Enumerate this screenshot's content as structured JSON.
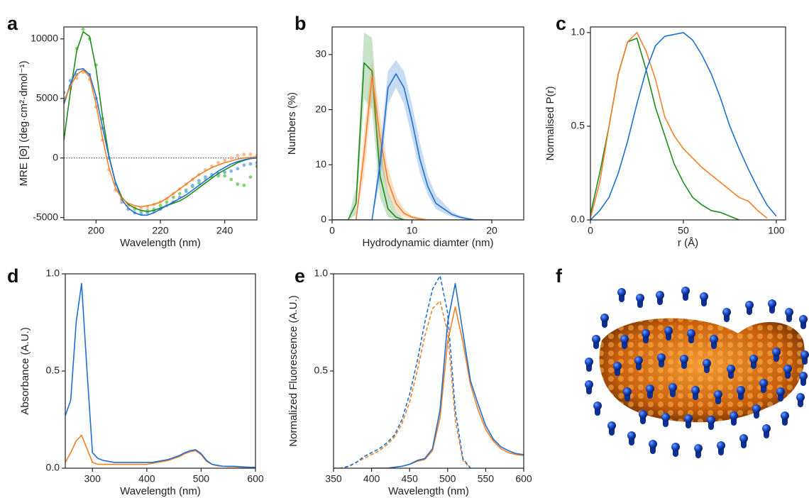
{
  "chart_data": [
    {
      "type": "line",
      "panel": "a",
      "xlabel": "Wavelength (nm)",
      "ylabel": "MRE [Θ] (deg·cm²·dmol⁻¹)",
      "xlim": [
        190,
        250
      ],
      "xticks": [
        200,
        220,
        240
      ],
      "ylim": [
        -5200,
        11000
      ],
      "yticks": [
        -5000,
        0,
        5000,
        10000
      ],
      "hline": 0,
      "x": [
        190,
        192,
        194,
        196,
        198,
        200,
        202,
        204,
        206,
        208,
        210,
        212,
        214,
        216,
        218,
        220,
        222,
        224,
        226,
        228,
        230,
        232,
        234,
        236,
        238,
        240,
        242,
        244,
        246,
        248,
        250
      ],
      "series": [
        {
          "color": "#83d36f",
          "style": "dots",
          "values": [
            2000,
            6000,
            9200,
            10800,
            10000,
            7800,
            3300,
            0,
            -2200,
            -3500,
            -4000,
            -4300,
            -4500,
            -4400,
            -4300,
            -4000,
            -3700,
            -3300,
            -3000,
            -2700,
            -2400,
            -2100,
            -1800,
            -1600,
            -1500,
            -1500,
            -1800,
            -2200,
            -2300,
            -1600,
            -700
          ]
        },
        {
          "color": "#7fb2ee",
          "style": "dots",
          "values": [
            5500,
            6500,
            7000,
            7300,
            7000,
            5000,
            2500,
            0,
            -2200,
            -3700,
            -4300,
            -4600,
            -4700,
            -4600,
            -4500,
            -4300,
            -4000,
            -3700,
            -3300,
            -2800,
            -2300,
            -1900,
            -1600,
            -1400,
            -1300,
            -1200,
            -1100,
            -900,
            -600,
            -500,
            -400
          ]
        },
        {
          "color": "#f7b98f",
          "style": "dots",
          "values": [
            5000,
            5800,
            6700,
            7200,
            6600,
            4300,
            1500,
            -1000,
            -2700,
            -3600,
            -4000,
            -4200,
            -4200,
            -4100,
            -3900,
            -3700,
            -3400,
            -3000,
            -2600,
            -2200,
            -1800,
            -1400,
            -1000,
            -700,
            -400,
            -200,
            0,
            200,
            300,
            300,
            200
          ]
        },
        {
          "color": "#1f8a1f",
          "style": "line",
          "values": [
            1500,
            5500,
            9000,
            10600,
            10200,
            7500,
            3500,
            200,
            -2000,
            -3300,
            -3900,
            -4200,
            -4400,
            -4500,
            -4400,
            -4200,
            -4000,
            -3800,
            -3600,
            -3300,
            -2900,
            -2500,
            -2100,
            -1700,
            -1300,
            -1000,
            -700,
            -400,
            -200,
            -50,
            0
          ]
        },
        {
          "color": "#1f6fd0",
          "style": "line",
          "values": [
            4500,
            6200,
            7400,
            7500,
            7000,
            5200,
            2600,
            100,
            -2000,
            -3500,
            -4200,
            -4600,
            -4800,
            -4800,
            -4600,
            -4300,
            -4000,
            -3700,
            -3400,
            -3100,
            -2700,
            -2300,
            -1900,
            -1500,
            -1100,
            -800,
            -500,
            -300,
            -150,
            -50,
            0
          ]
        },
        {
          "color": "#f47f24",
          "style": "line",
          "values": [
            4800,
            6000,
            7000,
            7400,
            6800,
            4500,
            1700,
            -800,
            -2500,
            -3400,
            -3800,
            -4000,
            -4100,
            -4000,
            -3900,
            -3700,
            -3400,
            -3000,
            -2600,
            -2200,
            -1800,
            -1400,
            -1100,
            -800,
            -600,
            -400,
            -250,
            -100,
            0,
            50,
            100
          ]
        }
      ]
    },
    {
      "type": "line",
      "panel": "b",
      "xlabel": "Hydrodynamic diamter (nm)",
      "ylabel": "Numbers (%)",
      "xlim": [
        0,
        24
      ],
      "xticks": [
        0,
        10,
        20
      ],
      "ylim": [
        0,
        35
      ],
      "yticks": [
        0,
        10,
        20,
        30
      ],
      "x": [
        0,
        1,
        2,
        3,
        4,
        5,
        6,
        7,
        8,
        9,
        10,
        11,
        12,
        13,
        14,
        15,
        16,
        17,
        18,
        19,
        20
      ],
      "series": [
        {
          "color": "#1f8a1f",
          "style": "line",
          "values": [
            0,
            0,
            0,
            3,
            28.5,
            27,
            8,
            2,
            0.5,
            0,
            0,
            0,
            0,
            0,
            0,
            0,
            0,
            0,
            0,
            0,
            0
          ],
          "low": [
            0,
            0,
            0,
            1,
            22,
            20,
            4,
            0.5,
            0,
            0,
            0,
            0,
            0,
            0,
            0,
            0,
            0,
            0,
            0,
            0,
            0
          ],
          "high": [
            0,
            0,
            0,
            6,
            34,
            33,
            14,
            5,
            1.5,
            0.3,
            0,
            0,
            0,
            0,
            0,
            0,
            0,
            0,
            0,
            0,
            0
          ]
        },
        {
          "color": "#f47f24",
          "style": "line",
          "values": [
            0,
            0,
            0,
            0,
            12,
            26,
            15,
            7,
            3,
            1.2,
            0.5,
            0.2,
            0,
            0,
            0,
            0,
            0,
            0,
            0,
            0,
            0
          ],
          "low": [
            0,
            0,
            0,
            0,
            8,
            22,
            11,
            4.5,
            1.5,
            0.5,
            0.2,
            0,
            0,
            0,
            0,
            0,
            0,
            0,
            0,
            0,
            0
          ],
          "high": [
            0,
            0,
            0,
            0,
            16,
            29,
            19,
            9.5,
            4.5,
            2,
            0.8,
            0.4,
            0,
            0,
            0,
            0,
            0,
            0,
            0,
            0,
            0
          ]
        },
        {
          "color": "#1f6fd0",
          "style": "line",
          "values": [
            0,
            0,
            0,
            0,
            0,
            0,
            10,
            24,
            26.5,
            24,
            18,
            11,
            6,
            3,
            2,
            1,
            0.5,
            0.2,
            0,
            0,
            0
          ],
          "low": [
            0,
            0,
            0,
            0,
            0,
            0,
            7,
            21,
            24,
            21,
            15,
            8.5,
            4.5,
            2,
            1.2,
            0.6,
            0.2,
            0,
            0,
            0,
            0
          ],
          "high": [
            0,
            0,
            0,
            0,
            0,
            0,
            13,
            27,
            29,
            27,
            21,
            14,
            8,
            4.5,
            3,
            1.5,
            0.8,
            0.4,
            0,
            0,
            0
          ]
        }
      ]
    },
    {
      "type": "line",
      "panel": "c",
      "xlabel": "r (Å)",
      "ylabel": "Normalised P(r)",
      "xlim": [
        0,
        105
      ],
      "xticks": [
        0,
        50,
        100
      ],
      "ylim": [
        0,
        1.03
      ],
      "yticks": [
        {
          "value": 0,
          "label": "0.0"
        },
        0.5,
        {
          "value": 1,
          "label": "1.0"
        }
      ],
      "x": [
        0,
        5,
        10,
        15,
        20,
        25,
        30,
        35,
        40,
        45,
        50,
        55,
        60,
        65,
        70,
        75,
        80,
        85,
        90,
        95,
        100,
        105
      ],
      "series": [
        {
          "color": "#1f8a1f",
          "style": "line",
          "values": [
            0.03,
            0.25,
            0.5,
            0.78,
            0.95,
            0.97,
            0.8,
            0.6,
            0.45,
            0.3,
            0.2,
            0.12,
            0.08,
            0.05,
            0.04,
            0.02,
            0,
            null,
            null,
            null,
            null,
            null
          ]
        },
        {
          "color": "#f47f24",
          "style": "line",
          "values": [
            0.01,
            0.2,
            0.5,
            0.78,
            0.95,
            1.0,
            0.9,
            0.75,
            0.55,
            0.45,
            0.38,
            0.33,
            0.28,
            0.24,
            0.2,
            0.16,
            0.12,
            0.1,
            0.05,
            0.01,
            null,
            null
          ]
        },
        {
          "color": "#1f6fd0",
          "style": "line",
          "values": [
            0,
            0.05,
            0.12,
            0.25,
            0.42,
            0.62,
            0.8,
            0.93,
            0.98,
            0.99,
            1.0,
            0.96,
            0.88,
            0.78,
            0.65,
            0.5,
            0.38,
            0.27,
            0.17,
            0.08,
            0.02,
            null
          ]
        }
      ]
    },
    {
      "type": "line",
      "panel": "d",
      "xlabel": "Wavelength (nm)",
      "ylabel": "Absorbance (A.U.)",
      "xlim": [
        250,
        600
      ],
      "xticks": [
        300,
        400,
        500,
        600
      ],
      "ylim": [
        0,
        1.0
      ],
      "yticks": [
        {
          "value": 0,
          "label": "0.0"
        },
        0.5,
        {
          "value": 1,
          "label": "1.0"
        }
      ],
      "x": [
        250,
        260,
        270,
        280,
        290,
        300,
        310,
        320,
        330,
        340,
        350,
        360,
        370,
        380,
        390,
        400,
        410,
        420,
        430,
        440,
        450,
        460,
        470,
        480,
        490,
        500,
        510,
        520,
        530,
        540,
        550,
        560,
        570,
        580,
        590,
        600
      ],
      "series": [
        {
          "color": "#f47f24",
          "style": "line",
          "values": [
            0.03,
            0.08,
            0.14,
            0.17,
            0.1,
            0.03,
            0.02,
            0.02,
            0.02,
            0.02,
            0.02,
            0.02,
            0.02,
            0.02,
            0.02,
            0.02,
            0.025,
            0.03,
            0.035,
            0.04,
            0.05,
            0.06,
            0.075,
            0.085,
            0.09,
            0.07,
            0.035,
            0.02,
            0.012,
            0.01,
            0.008,
            0.008,
            0.006,
            0.005,
            0.004,
            0.004
          ]
        },
        {
          "color": "#1f6fd0",
          "style": "line",
          "values": [
            0.27,
            0.35,
            0.75,
            0.95,
            0.5,
            0.08,
            0.05,
            0.04,
            0.035,
            0.03,
            0.03,
            0.03,
            0.03,
            0.03,
            0.03,
            0.03,
            0.03,
            0.035,
            0.04,
            0.045,
            0.055,
            0.065,
            0.08,
            0.09,
            0.095,
            0.075,
            0.04,
            0.02,
            0.015,
            0.01,
            0.01,
            0.01,
            0.008,
            0.006,
            0.005,
            0.005
          ]
        }
      ]
    },
    {
      "type": "line",
      "panel": "e",
      "xlabel": "Wavelength (nm)",
      "ylabel": "Normalized Fluorescence (A.U.)",
      "xlim": [
        350,
        600
      ],
      "xticks": [
        350,
        400,
        450,
        500,
        550,
        600
      ],
      "ylim": [
        0,
        1.0
      ],
      "yticks": [
        0.5,
        {
          "value": 1,
          "label": "1.0"
        }
      ],
      "x": [
        350,
        360,
        370,
        380,
        390,
        400,
        410,
        420,
        430,
        440,
        450,
        460,
        470,
        480,
        490,
        500,
        510,
        520,
        530,
        540,
        550,
        560,
        570,
        580,
        590,
        600
      ],
      "series": [
        {
          "color": "#f47f24",
          "style": "dashed",
          "values": [
            0,
            0,
            0.01,
            0.03,
            0.05,
            0.07,
            0.09,
            0.12,
            0.16,
            0.23,
            0.34,
            0.5,
            0.68,
            0.82,
            0.86,
            0.7,
            0.25,
            0.04,
            0,
            null,
            null,
            null,
            null,
            null,
            null,
            null
          ]
        },
        {
          "color": "#1f6fd0",
          "style": "dashed",
          "values": [
            0,
            0,
            0.01,
            0.03,
            0.06,
            0.08,
            0.1,
            0.13,
            0.17,
            0.25,
            0.38,
            0.55,
            0.75,
            0.92,
            0.99,
            0.8,
            0.3,
            0.05,
            0,
            null,
            null,
            null,
            null,
            null,
            null,
            null
          ]
        },
        {
          "color": "#f47f24",
          "style": "line",
          "values": [
            null,
            null,
            null,
            null,
            null,
            0,
            0,
            0,
            0.005,
            0.01,
            0.02,
            0.035,
            0.045,
            0.09,
            0.26,
            0.65,
            0.83,
            0.65,
            0.43,
            0.3,
            0.2,
            0.14,
            0.1,
            0.08,
            0.07,
            0.065
          ]
        },
        {
          "color": "#1f6fd0",
          "style": "line",
          "values": [
            null,
            null,
            null,
            null,
            null,
            0,
            0,
            0,
            0.005,
            0.01,
            0.02,
            0.04,
            0.05,
            0.1,
            0.3,
            0.75,
            0.95,
            0.7,
            0.45,
            0.33,
            0.22,
            0.15,
            0.11,
            0.09,
            0.075,
            0.07
          ]
        }
      ]
    }
  ],
  "image_panel": {
    "panel": "f"
  }
}
